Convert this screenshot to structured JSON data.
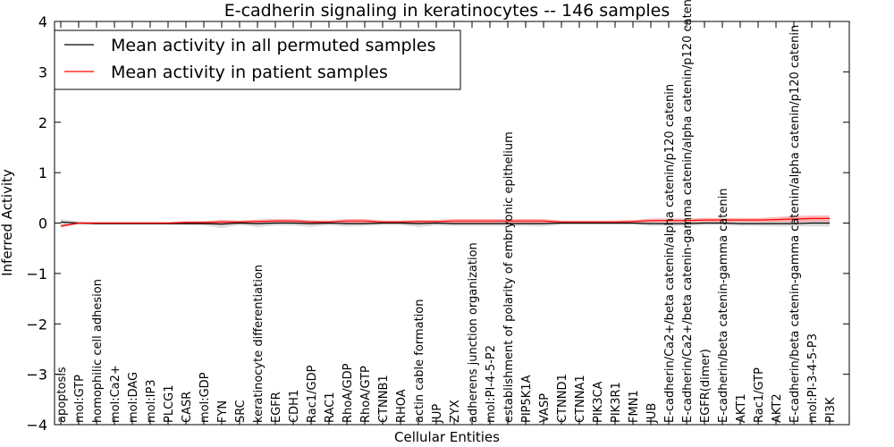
{
  "chart_data": {
    "type": "line",
    "title": "E-cadherin signaling in keratinocytes -- 146 samples",
    "xlabel": "Cellular Entities",
    "ylabel": "Inferred Activity",
    "ylim": [
      -4,
      4
    ],
    "yticks": [
      -4,
      -3,
      -2,
      -1,
      0,
      1,
      2,
      3,
      4
    ],
    "ytick_labels": [
      "−4",
      "−3",
      "−2",
      "−1",
      "0",
      "1",
      "2",
      "3",
      "4"
    ],
    "legend_position": "top-left",
    "categories": [
      "apoptosis",
      "mol:GTP",
      "homophilic cell adhesion",
      "mol:Ca2+",
      "mol:DAG",
      "mol:IP3",
      "PLCG1",
      "CASR",
      "mol:GDP",
      "FYN",
      "SRC",
      "keratinocyte differentiation",
      "EGFR",
      "CDH1",
      "Rac1/GDP",
      "RAC1",
      "RhoA/GDP",
      "RhoA/GTP",
      "CTNNB1",
      "RHOA",
      "actin cable formation",
      "JUP",
      "ZYX",
      "adherens junction organization",
      "mol:PI-4-5-P2",
      "establishment of polarity of embryonic epithelium",
      "PIP5K1A",
      "VASP",
      "CTNND1",
      "CTNNA1",
      "PIK3CA",
      "PIK3R1",
      "FMN1",
      "JUB",
      "E-cadherin/Ca2+/beta catenin/alpha catenin/p120 catenin",
      "E-cadherin/Ca2+/beta catenin-gamma catenin/alpha catenin/p120 catenin",
      "EGFR(dimer)",
      "E-cadherin/beta catenin-gamma catenin",
      "AKT1",
      "Rac1/GTP",
      "AKT2",
      "E-cadherin/beta catenin-gamma catenin/alpha catenin/p120 catenin",
      "mol:PI-3-4-5-P3",
      "PI3K"
    ],
    "series": [
      {
        "name": "Mean activity in all permuted samples",
        "color": "#000000",
        "values": [
          0.02,
          0.0,
          -0.01,
          -0.01,
          -0.01,
          -0.01,
          -0.01,
          -0.01,
          -0.01,
          -0.02,
          0.0,
          -0.01,
          0.0,
          0.0,
          -0.01,
          0.0,
          -0.01,
          -0.01,
          0.0,
          0.0,
          -0.01,
          0.0,
          -0.01,
          -0.01,
          -0.01,
          -0.01,
          -0.01,
          -0.01,
          0.0,
          0.0,
          0.0,
          0.0,
          0.0,
          -0.01,
          -0.01,
          -0.01,
          0.0,
          0.0,
          -0.01,
          -0.01,
          -0.01,
          -0.01,
          0.0,
          0.0
        ],
        "band": [
          0.06,
          0.03,
          0.02,
          0.02,
          0.02,
          0.02,
          0.02,
          0.03,
          0.04,
          0.08,
          0.04,
          0.07,
          0.05,
          0.05,
          0.07,
          0.04,
          0.06,
          0.05,
          0.04,
          0.04,
          0.07,
          0.05,
          0.05,
          0.05,
          0.05,
          0.05,
          0.05,
          0.06,
          0.03,
          0.03,
          0.03,
          0.03,
          0.03,
          0.05,
          0.05,
          0.05,
          0.04,
          0.04,
          0.05,
          0.05,
          0.06,
          0.06,
          0.07,
          0.07
        ]
      },
      {
        "name": "Mean activity in patient samples",
        "color": "#ff0000",
        "fill": "#ff8080",
        "values": [
          -0.06,
          0.0,
          0.0,
          0.0,
          0.0,
          0.0,
          0.0,
          0.01,
          0.01,
          0.02,
          0.02,
          0.03,
          0.04,
          0.04,
          0.02,
          0.02,
          0.04,
          0.04,
          0.02,
          0.02,
          0.03,
          0.03,
          0.04,
          0.04,
          0.04,
          0.04,
          0.04,
          0.04,
          0.02,
          0.02,
          0.02,
          0.02,
          0.03,
          0.05,
          0.05,
          0.05,
          0.06,
          0.06,
          0.06,
          0.06,
          0.07,
          0.08,
          0.09,
          0.09
        ],
        "band": [
          0.03,
          0.02,
          0.02,
          0.02,
          0.02,
          0.02,
          0.02,
          0.03,
          0.03,
          0.04,
          0.03,
          0.04,
          0.04,
          0.04,
          0.03,
          0.03,
          0.04,
          0.04,
          0.03,
          0.03,
          0.03,
          0.03,
          0.04,
          0.04,
          0.04,
          0.04,
          0.04,
          0.04,
          0.03,
          0.03,
          0.03,
          0.03,
          0.03,
          0.04,
          0.04,
          0.04,
          0.04,
          0.04,
          0.04,
          0.04,
          0.05,
          0.06,
          0.06,
          0.06
        ]
      }
    ]
  }
}
